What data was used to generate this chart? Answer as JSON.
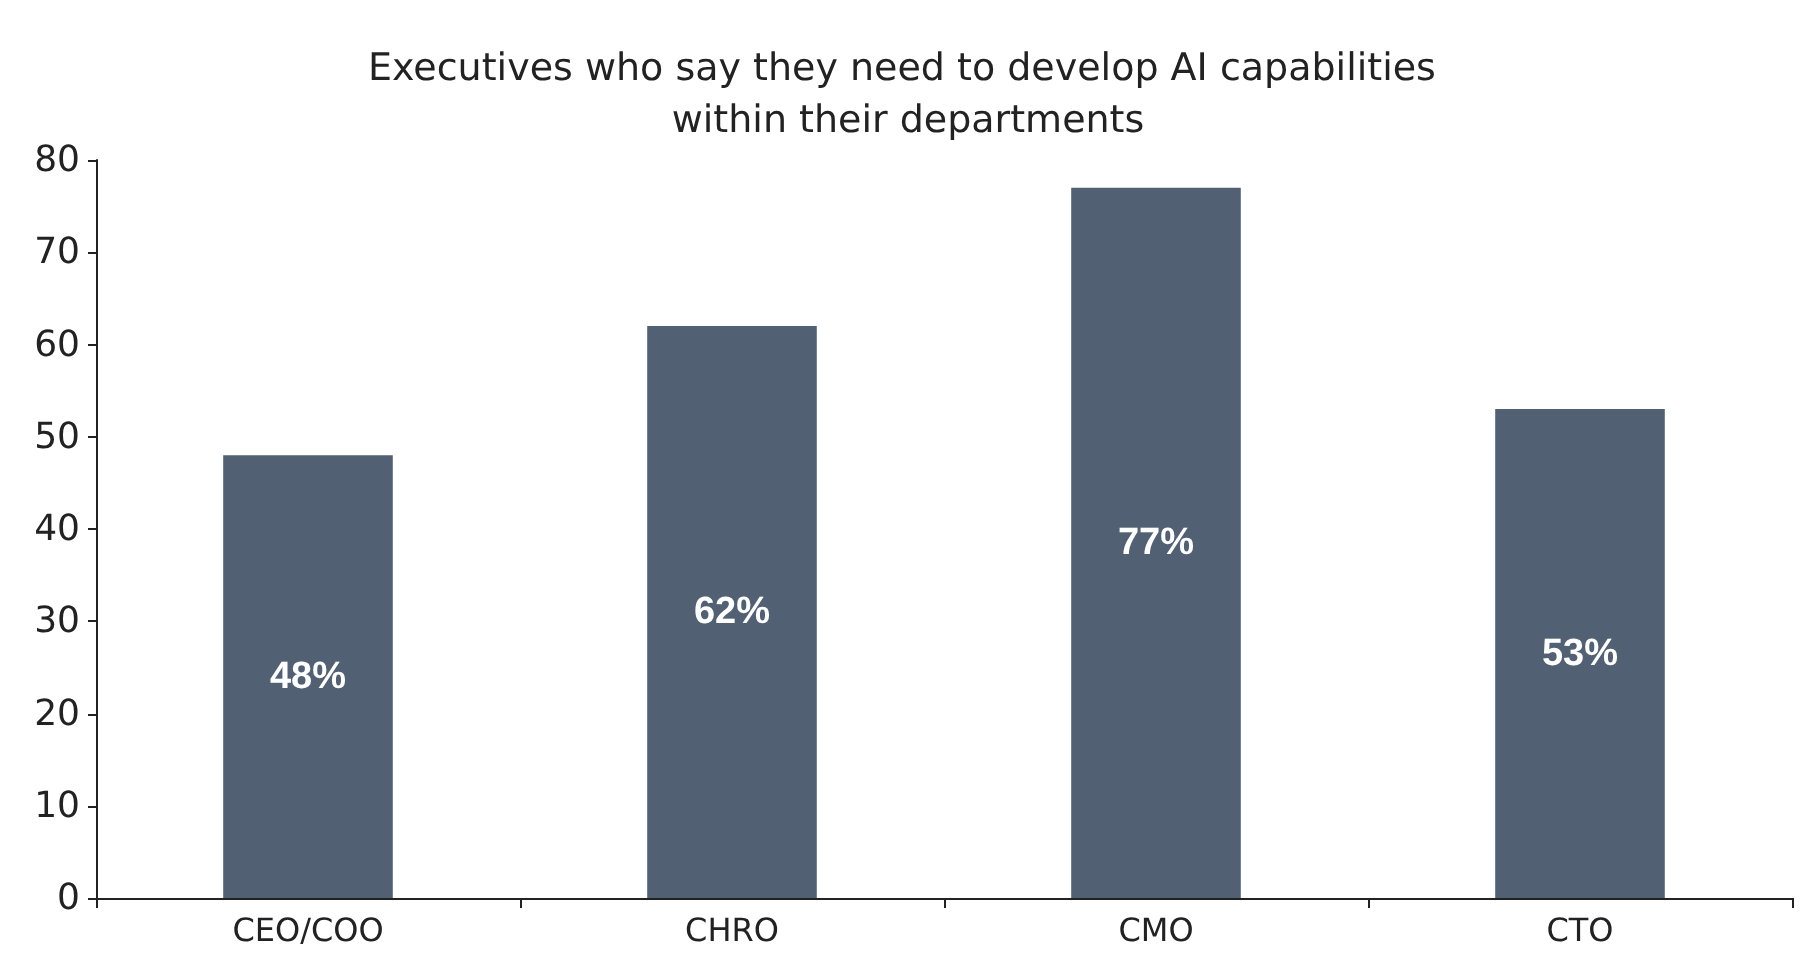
{
  "chart_data": {
    "type": "bar",
    "title": "Executives who say they need to develop AI capabilities within their departments",
    "categories": [
      "CEO/COO",
      "CHRO",
      "CMO",
      "CTO"
    ],
    "values": [
      48,
      62,
      77,
      53
    ],
    "color": "#526074",
    "value_labels": [
      "48%",
      "62%",
      "77%",
      "53%"
    ],
    "ylim": [
      0,
      80
    ],
    "yticks": [
      0,
      10,
      20,
      30,
      40,
      50,
      60,
      70,
      80
    ],
    "grid": false
  }
}
